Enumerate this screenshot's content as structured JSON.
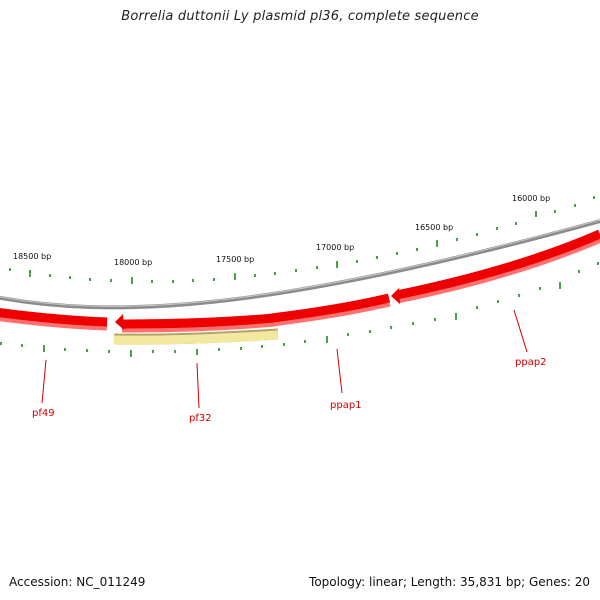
{
  "title": "Borrelia duttonii Ly plasmid pl36, complete sequence",
  "footer": {
    "accession": "Accession: NC_011249",
    "summary": "Topology: linear; Length: 35,831 bp; Genes: 20"
  },
  "colors": {
    "backbone": "#8c8c8c",
    "gene_forward": "#ee0000",
    "gene_forward_shadow": "#ff6060",
    "gene_pseudo": "#f3e8a0",
    "gene_pseudo_outline": "#b3a46a",
    "tick": "#1a8a1a",
    "label": "#d00000"
  },
  "scale": {
    "tick_labels": [
      "16000 bp",
      "16500 bp",
      "17000 bp",
      "17500 bp",
      "18000 bp",
      "18500 bp"
    ]
  },
  "genes": [
    {
      "name": "ppap2",
      "type": "coding"
    },
    {
      "name": "ppap1",
      "type": "coding"
    },
    {
      "name": "pf32",
      "type": "pseudo"
    },
    {
      "name": "pf49",
      "type": "coding"
    }
  ]
}
